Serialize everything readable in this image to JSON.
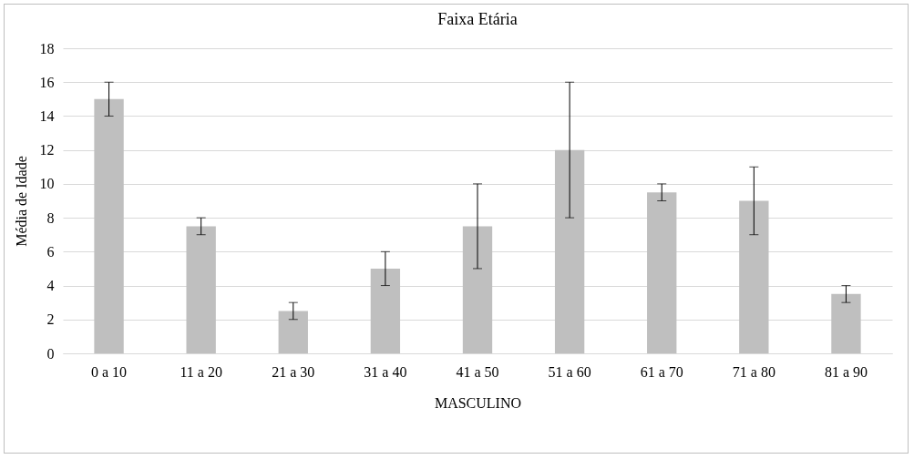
{
  "chart_data": {
    "type": "bar",
    "title": "Faixa Etária",
    "xlabel": "MASCULINO",
    "ylabel": "Média de Idade",
    "categories": [
      "0 a 10",
      "11 a 20",
      "21 a 30",
      "31 a 40",
      "41 a 50",
      "51 a 60",
      "61 a 70",
      "71 a 80",
      "81 a 90"
    ],
    "values": [
      15,
      7.5,
      2.5,
      5,
      7.5,
      12,
      9.5,
      9,
      3.5
    ],
    "errors": [
      1,
      0.5,
      0.5,
      1,
      2.5,
      4,
      0.5,
      2,
      0.5
    ],
    "color": "#bfbfbf",
    "ylim": [
      0,
      18
    ],
    "yticks": [
      0,
      2,
      4,
      6,
      8,
      10,
      12,
      14,
      16,
      18
    ],
    "grid": "y"
  }
}
